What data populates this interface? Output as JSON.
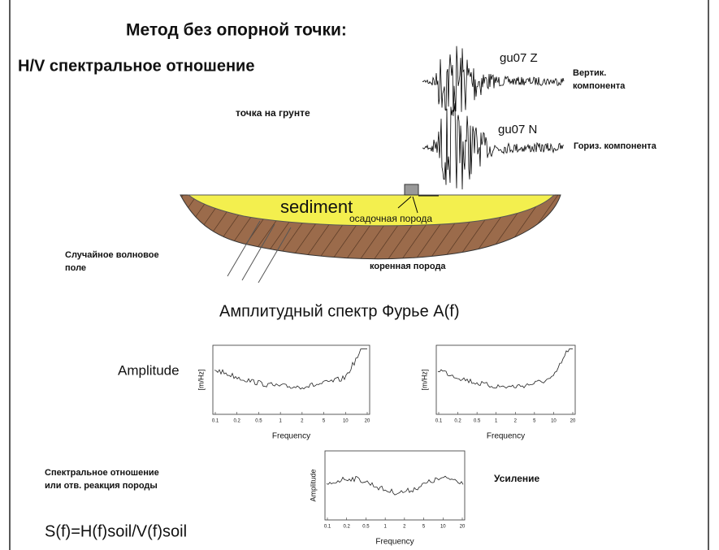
{
  "header": {
    "title": "Метод без опорной точки:",
    "subtitle": "H/V спектральное отношение"
  },
  "site": {
    "label": "точка на грунте"
  },
  "seismograms": [
    {
      "station": "gu07  Z",
      "component": [
        "Вертик.",
        "компонента"
      ]
    },
    {
      "station": "gu07  N",
      "component": [
        "Гориз. компонента"
      ]
    }
  ],
  "basin": {
    "sediment": "sediment",
    "sediment_ru": "осадочная порода",
    "bedrock": "коренная порода",
    "wavefield": [
      "Случайное волновое",
      "поле"
    ]
  },
  "spectra": {
    "title": "Амплитудный спектр Фурье A(f)",
    "label": "Amplitude",
    "plots": [
      {
        "ylabel": "[m/Hz]",
        "xlabel": "Frequency"
      },
      {
        "ylabel": "[m/Hz]",
        "xlabel": "Frequency"
      },
      {
        "ylabel": "Amplitude",
        "xlabel": "Frequency"
      }
    ],
    "xticks": [
      "0.1",
      "0.2",
      "0.5",
      "1",
      "2",
      "5",
      "10",
      "20"
    ]
  },
  "ratio": {
    "label": [
      "Спектральное отношение",
      "или отв. реакция породы"
    ],
    "gain": "Усиление",
    "formula": "S(f)=H(f)soil/V(f)soil"
  }
}
